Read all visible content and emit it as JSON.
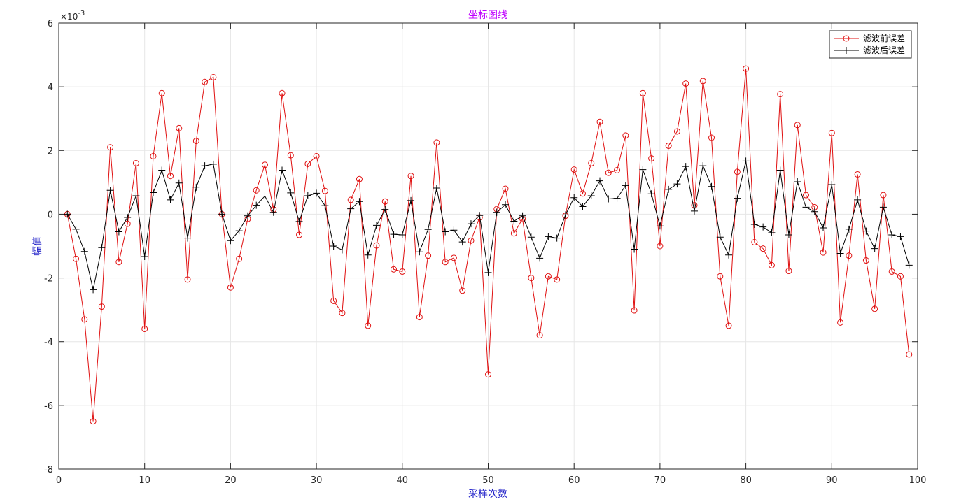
{
  "chart_data": {
    "type": "line",
    "title": "坐标图线",
    "xlabel": "采样次数",
    "ylabel": "幅值",
    "y_exponent_label": "×10",
    "y_exponent_power": "-3",
    "xlim": [
      0,
      100
    ],
    "ylim": [
      -8,
      6
    ],
    "x_ticks": [
      0,
      10,
      20,
      30,
      40,
      50,
      60,
      70,
      80,
      90,
      100
    ],
    "y_ticks": [
      -8,
      -6,
      -4,
      -2,
      0,
      2,
      4,
      6
    ],
    "grid": true,
    "legend_position": "top-right",
    "colors": {
      "before": "#e01010",
      "after": "#000000",
      "grid": "#e6e6e6",
      "axes": "#262626",
      "title": "#c000ff",
      "axis_title": "#2020c8"
    },
    "x": [
      1,
      2,
      3,
      4,
      5,
      6,
      7,
      8,
      9,
      10,
      11,
      12,
      13,
      14,
      15,
      16,
      17,
      18,
      19,
      20,
      21,
      22,
      23,
      24,
      25,
      26,
      27,
      28,
      29,
      30,
      31,
      32,
      33,
      34,
      35,
      36,
      37,
      38,
      39,
      40,
      41,
      42,
      43,
      44,
      45,
      46,
      47,
      48,
      49,
      50,
      51,
      52,
      53,
      54,
      55,
      56,
      57,
      58,
      59,
      60,
      61,
      62,
      63,
      64,
      65,
      66,
      67,
      68,
      69,
      70,
      71,
      72,
      73,
      74,
      75,
      76,
      77,
      78,
      79,
      80,
      81,
      82,
      83,
      84,
      85,
      86,
      87,
      88,
      89,
      90,
      91,
      92,
      93,
      94,
      95,
      96,
      97,
      98,
      99
    ],
    "series": [
      {
        "name": "滤波前误差",
        "marker": "circle",
        "values": [
          0.0,
          -1.4,
          -3.3,
          -6.5,
          -2.9,
          2.1,
          -1.5,
          -0.3,
          1.6,
          -3.6,
          1.82,
          3.8,
          1.2,
          2.7,
          -2.05,
          2.3,
          4.15,
          4.3,
          0.0,
          -2.3,
          -1.4,
          -0.15,
          0.75,
          1.55,
          0.15,
          3.8,
          1.85,
          -0.65,
          1.58,
          1.82,
          0.73,
          -2.72,
          -3.1,
          0.45,
          1.1,
          -3.5,
          -0.98,
          0.4,
          -1.73,
          -1.8,
          1.2,
          -3.23,
          -1.3,
          2.25,
          -1.5,
          -1.37,
          -2.4,
          -0.83,
          -0.1,
          -5.03,
          0.16,
          0.8,
          -0.6,
          -0.15,
          -2.0,
          -3.8,
          -1.95,
          -2.05,
          -0.05,
          1.4,
          0.65,
          1.6,
          2.9,
          1.3,
          1.38,
          2.47,
          -3.02,
          3.8,
          1.75,
          -1.0,
          2.15,
          2.6,
          4.1,
          0.28,
          4.18,
          2.4,
          -1.95,
          -3.5,
          1.33,
          4.57,
          -0.88,
          -1.08,
          -1.6,
          3.77,
          -1.78,
          2.8,
          0.6,
          0.22,
          -1.2,
          2.55,
          -3.4,
          -1.3,
          1.25,
          -1.45,
          -2.97,
          0.6,
          -1.8,
          -1.95,
          -4.4
        ]
      },
      {
        "name": "滤波后误差",
        "marker": "plus",
        "values": [
          0.0,
          -0.47,
          -1.17,
          -2.37,
          -1.05,
          0.75,
          -0.55,
          -0.1,
          0.58,
          -1.33,
          0.68,
          1.38,
          0.45,
          0.98,
          -0.75,
          0.85,
          1.52,
          1.57,
          0.0,
          -0.83,
          -0.52,
          -0.05,
          0.28,
          0.57,
          0.06,
          1.38,
          0.67,
          -0.23,
          0.58,
          0.66,
          0.27,
          -1.0,
          -1.12,
          0.17,
          0.4,
          -1.28,
          -0.35,
          0.15,
          -0.63,
          -0.65,
          0.43,
          -1.18,
          -0.48,
          0.82,
          -0.55,
          -0.5,
          -0.87,
          -0.3,
          -0.04,
          -1.83,
          0.06,
          0.3,
          -0.22,
          -0.05,
          -0.72,
          -1.38,
          -0.7,
          -0.75,
          -0.02,
          0.52,
          0.24,
          0.58,
          1.05,
          0.48,
          0.5,
          0.9,
          -1.1,
          1.4,
          0.64,
          -0.37,
          0.78,
          0.95,
          1.5,
          0.1,
          1.52,
          0.87,
          -0.72,
          -1.28,
          0.5,
          1.67,
          -0.32,
          -0.4,
          -0.58,
          1.38,
          -0.65,
          1.02,
          0.22,
          0.08,
          -0.43,
          0.93,
          -1.23,
          -0.47,
          0.45,
          -0.53,
          -1.08,
          0.22,
          -0.65,
          -0.7,
          -1.6
        ]
      }
    ]
  }
}
